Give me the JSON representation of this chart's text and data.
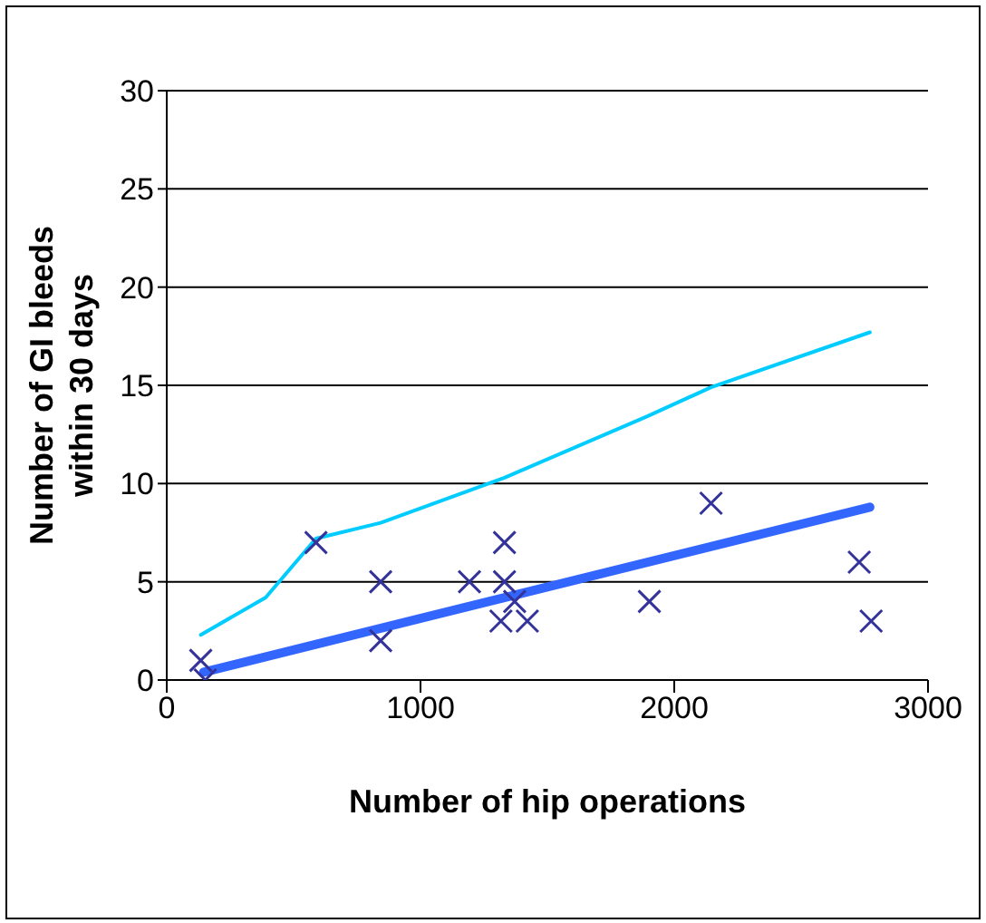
{
  "chart_data": {
    "type": "scatter",
    "xlabel": "Number of hip operations",
    "ylabel": "Number of GI bleeds\nwithin 30  days",
    "xlim": [
      0,
      3000
    ],
    "xticks": [
      0,
      1000,
      2000,
      3000
    ],
    "ylim": [
      0,
      30
    ],
    "yticks": [
      0,
      5,
      10,
      15,
      20,
      25,
      30
    ],
    "grid": "y",
    "series": [
      {
        "marker": "cross",
        "color": "#333399",
        "x": [
          134,
          152,
          588,
          843,
          843,
          1193,
          1331,
          1331,
          1317,
          1371,
          1421,
          1902,
          2145,
          2729,
          2776
        ],
        "values": [
          1,
          0,
          7,
          5,
          2,
          5,
          7,
          5,
          3,
          4,
          3,
          4,
          9,
          6,
          3
        ]
      },
      {
        "type": "line",
        "marker": "none",
        "color": "#3366ff",
        "x": [
          145,
          2771
        ],
        "values": [
          0.4,
          8.8
        ]
      },
      {
        "type": "line",
        "marker": "none",
        "color": "#00ccff",
        "x": [
          134,
          390,
          588,
          843,
          1331,
          1890,
          2145,
          2771
        ],
        "values": [
          2.3,
          4.2,
          7.2,
          8.0,
          10.3,
          13.4,
          14.9,
          17.7
        ]
      }
    ]
  }
}
